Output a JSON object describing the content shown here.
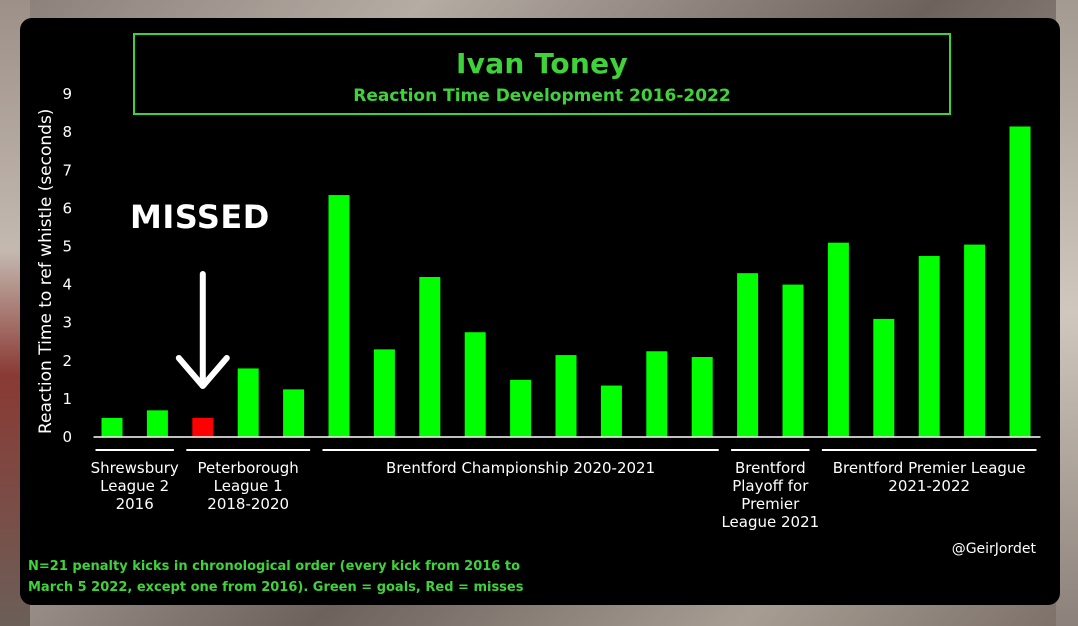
{
  "chart_data": {
    "type": "bar",
    "title": "Ivan Toney",
    "subtitle": "Reaction Time Development 2016-2022",
    "xlabel": "",
    "ylabel": "Reaction Time to ref whistle (seconds)",
    "ylim": [
      0,
      9
    ],
    "yticks": [
      "0",
      "1",
      "2",
      "3",
      "4",
      "5",
      "6",
      "7",
      "8",
      "9"
    ],
    "values": [
      0.5,
      0.7,
      0.5,
      1.8,
      1.25,
      6.35,
      2.3,
      4.2,
      2.75,
      1.5,
      2.15,
      1.35,
      2.25,
      2.1,
      4.3,
      4.0,
      5.1,
      3.1,
      4.75,
      5.05,
      8.15
    ],
    "outcomes": [
      "goal",
      "goal",
      "miss",
      "goal",
      "goal",
      "goal",
      "goal",
      "goal",
      "goal",
      "goal",
      "goal",
      "goal",
      "goal",
      "goal",
      "goal",
      "goal",
      "goal",
      "goal",
      "goal",
      "goal",
      "goal"
    ],
    "colors": {
      "goal": "#00ff00",
      "miss": "#ff0000",
      "title": "#3fd23a"
    },
    "groups": [
      {
        "label": "Shrewsbury League 2 2016",
        "lines": [
          "Shrewsbury",
          "League 2",
          "2016"
        ],
        "start": 0,
        "end": 1
      },
      {
        "label": "Peterborough League 1 2018-2020",
        "lines": [
          "Peterborough",
          "League 1",
          "2018-2020"
        ],
        "start": 2,
        "end": 4
      },
      {
        "label": "Brentford Championship 2020-2021",
        "lines": [
          "Brentford Championship 2020-2021"
        ],
        "start": 5,
        "end": 13
      },
      {
        "label": "Brentford Playoff for Premier League 2021",
        "lines": [
          "Brentford",
          "Playoff for",
          "Premier",
          "League 2021"
        ],
        "start": 14,
        "end": 15
      },
      {
        "label": "Brentford Premier League 2021-2022",
        "lines": [
          "Brentford Premier League",
          "2021-2022"
        ],
        "start": 16,
        "end": 20
      }
    ],
    "annotation": "MISSED",
    "annotation_bar": 2
  },
  "credit": "@GeirJordet",
  "footnote": {
    "line1": "N=21 penalty kicks in chronological order (every kick from 2016 to",
    "line2": "March 5 2022, except one from 2016). Green = goals, Red = misses"
  }
}
